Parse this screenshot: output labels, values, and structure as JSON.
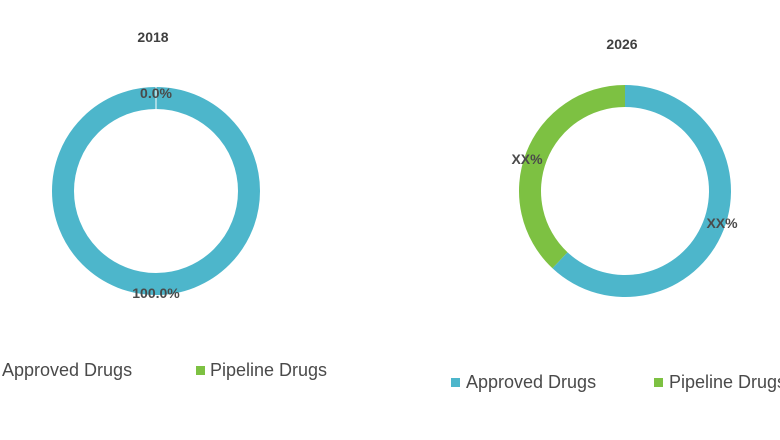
{
  "chart_data": [
    {
      "type": "pie",
      "variant": "donut",
      "title": "2018",
      "categories": [
        "Approved Drugs",
        "Pipeline Drugs"
      ],
      "values": [
        100.0,
        0.0
      ],
      "labels": [
        "100.0%",
        "0.0%"
      ],
      "colors": [
        "#4db6cb",
        "#7dc142"
      ],
      "legend": [
        "Approved Drugs",
        "Pipeline Drugs"
      ],
      "legend_position": "bottom"
    },
    {
      "type": "pie",
      "variant": "donut",
      "title": "2026",
      "categories": [
        "Approved Drugs",
        "Pipeline Drugs"
      ],
      "values": [
        62,
        38
      ],
      "labels": [
        "XX%",
        "XX%"
      ],
      "colors": [
        "#4db6cb",
        "#7dc142"
      ],
      "legend": [
        "Approved Drugs",
        "Pipeline Drugs"
      ],
      "legend_position": "bottom"
    }
  ]
}
